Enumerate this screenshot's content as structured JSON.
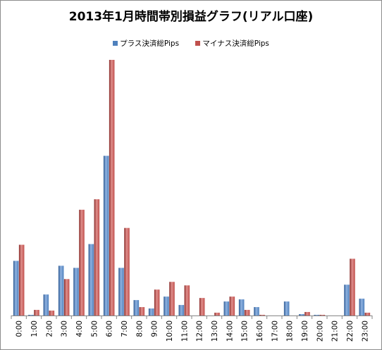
{
  "chart_data": {
    "type": "bar",
    "title": "2013年1月時間帯別損益グラフ(リアル口座)",
    "xlabel": "",
    "ylabel": "",
    "legend_position": "top",
    "grid": false,
    "categories": [
      "0:00",
      "1:00",
      "2:00",
      "3:00",
      "4:00",
      "5:00",
      "6:00",
      "7:00",
      "8:00",
      "9:00",
      "10:00",
      "11:00",
      "12:00",
      "13:00",
      "14:00",
      "15:00",
      "16:00",
      "17:00",
      "18:00",
      "19:00",
      "20:00",
      "21:00",
      "22:00",
      "23:00"
    ],
    "series": [
      {
        "name": "プラス決済総Pips",
        "color": "#4f81bd",
        "values": [
          78,
          1,
          30,
          71,
          68,
          102,
          228,
          68,
          22,
          10,
          27,
          15,
          0,
          0,
          20,
          23,
          12,
          0,
          20,
          2,
          1,
          0,
          44,
          24
        ]
      },
      {
        "name": "マイナス決済総Pips",
        "color": "#c0504d",
        "values": [
          101,
          8,
          7,
          52,
          151,
          166,
          365,
          125,
          12,
          37,
          48,
          43,
          25,
          4,
          27,
          8,
          1,
          0,
          0,
          5,
          1,
          0,
          81,
          4
        ]
      }
    ],
    "ylim": [
      0,
      365
    ]
  }
}
